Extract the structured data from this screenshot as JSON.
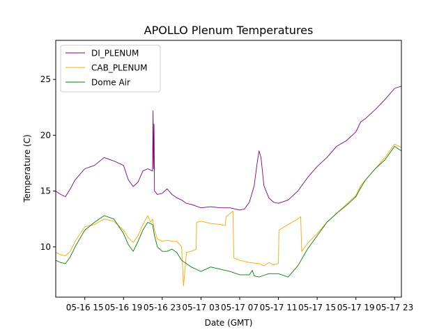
{
  "chart_data": {
    "type": "line",
    "title": "APOLLO Plenum Temperatures",
    "xlabel": "Date (GMT)",
    "ylabel": "Temperature (C)",
    "x_unit": "hours since 05-16 12:00 GMT",
    "xlim": [
      0,
      35.7
    ],
    "ylim": [
      5.5,
      28.5
    ],
    "x_ticks": [
      {
        "value": 3,
        "label": "05-16 15"
      },
      {
        "value": 7,
        "label": "05-16 19"
      },
      {
        "value": 11,
        "label": "05-16 23"
      },
      {
        "value": 15,
        "label": "05-17 03"
      },
      {
        "value": 19,
        "label": "05-17 07"
      },
      {
        "value": 23,
        "label": "05-17 11"
      },
      {
        "value": 27,
        "label": "05-17 15"
      },
      {
        "value": 31,
        "label": "05-17 19"
      },
      {
        "value": 35,
        "label": "05-17 23"
      }
    ],
    "y_ticks": [
      {
        "value": 10,
        "label": "10"
      },
      {
        "value": 15,
        "label": "15"
      },
      {
        "value": 20,
        "label": "20"
      },
      {
        "value": 25,
        "label": "25"
      }
    ],
    "legend_position": "top-left",
    "series": [
      {
        "name": "DI_PLENUM",
        "color": "#800080",
        "points": [
          [
            0,
            15
          ],
          [
            0.5,
            14.7
          ],
          [
            1,
            14.5
          ],
          [
            1.5,
            15.2
          ],
          [
            2,
            16
          ],
          [
            3,
            17
          ],
          [
            4,
            17.3
          ],
          [
            5,
            18
          ],
          [
            6,
            17.7
          ],
          [
            7,
            17.3
          ],
          [
            7.5,
            16
          ],
          [
            8,
            15.4
          ],
          [
            8.5,
            15.8
          ],
          [
            9,
            16.8
          ],
          [
            9.5,
            17
          ],
          [
            10,
            16.8
          ],
          [
            10.05,
            22.2
          ],
          [
            10.1,
            17
          ],
          [
            10.15,
            21
          ],
          [
            10.2,
            15
          ],
          [
            10.5,
            14.7
          ],
          [
            11,
            14.8
          ],
          [
            11.5,
            15.2
          ],
          [
            12,
            14.7
          ],
          [
            12.5,
            14.4
          ],
          [
            13,
            14.2
          ],
          [
            13.5,
            13.9
          ],
          [
            14,
            13.8
          ],
          [
            15,
            13.5
          ],
          [
            16,
            13.6
          ],
          [
            17,
            13.5
          ],
          [
            18,
            13.5
          ],
          [
            19,
            13.3
          ],
          [
            19.5,
            13.4
          ],
          [
            20,
            14
          ],
          [
            20.5,
            15.5
          ],
          [
            20.8,
            17.5
          ],
          [
            21,
            18.6
          ],
          [
            21.2,
            18
          ],
          [
            21.5,
            15.5
          ],
          [
            22,
            14.4
          ],
          [
            22.5,
            14
          ],
          [
            23,
            13.9
          ],
          [
            24,
            14.2
          ],
          [
            25,
            15
          ],
          [
            26,
            16.2
          ],
          [
            27,
            17.2
          ],
          [
            28,
            18
          ],
          [
            29,
            19
          ],
          [
            30,
            19.5
          ],
          [
            31,
            20.3
          ],
          [
            31.5,
            21.2
          ],
          [
            32,
            21.5
          ],
          [
            33,
            22.3
          ],
          [
            34,
            23.2
          ],
          [
            35,
            24.2
          ],
          [
            35.7,
            24.4
          ]
        ]
      },
      {
        "name": "CAB_PLENUM",
        "color": "#FFA500",
        "points": [
          [
            0,
            9.5
          ],
          [
            0.5,
            9.3
          ],
          [
            1,
            9.2
          ],
          [
            1.5,
            9.6
          ],
          [
            2,
            10.5
          ],
          [
            3,
            11.8
          ],
          [
            4,
            12
          ],
          [
            5,
            12.5
          ],
          [
            6,
            12.3
          ],
          [
            7,
            11.5
          ],
          [
            7.5,
            10.8
          ],
          [
            8,
            10.4
          ],
          [
            8.5,
            11
          ],
          [
            9,
            12
          ],
          [
            9.5,
            12.8
          ],
          [
            9.8,
            12.2
          ],
          [
            10,
            12.5
          ],
          [
            10.2,
            11.5
          ],
          [
            10.5,
            10.7
          ],
          [
            11,
            10.5
          ],
          [
            11.5,
            10.6
          ],
          [
            12,
            10.5
          ],
          [
            12.5,
            10.5
          ],
          [
            13,
            10
          ],
          [
            13.2,
            6.5
          ],
          [
            13.5,
            9.5
          ],
          [
            14,
            9.6
          ],
          [
            14.5,
            9.8
          ],
          [
            14.55,
            12.2
          ],
          [
            15,
            12.3
          ],
          [
            16,
            12.1
          ],
          [
            17,
            12
          ],
          [
            17.5,
            11.9
          ],
          [
            17.6,
            12.7
          ],
          [
            18,
            13
          ],
          [
            18.3,
            13.2
          ],
          [
            18.4,
            9
          ],
          [
            19,
            8.8
          ],
          [
            20,
            8.6
          ],
          [
            21,
            8.5
          ],
          [
            21.5,
            8.3
          ],
          [
            22,
            8.6
          ],
          [
            22.5,
            8.4
          ],
          [
            23,
            8.5
          ],
          [
            23.05,
            11.5
          ],
          [
            24,
            12
          ],
          [
            25,
            12.5
          ],
          [
            25.3,
            12.7
          ],
          [
            25.4,
            9.6
          ],
          [
            26,
            10.3
          ],
          [
            27,
            11.2
          ],
          [
            28,
            12.2
          ],
          [
            29,
            13
          ],
          [
            30,
            13.8
          ],
          [
            31,
            14.6
          ],
          [
            31.5,
            15.5
          ],
          [
            32,
            16
          ],
          [
            33,
            17
          ],
          [
            34,
            18
          ],
          [
            35,
            19.2
          ],
          [
            35.7,
            18.9
          ]
        ]
      },
      {
        "name": "Dome Air",
        "color": "#008000",
        "points": [
          [
            0,
            8.8
          ],
          [
            0.5,
            8.6
          ],
          [
            1,
            8.5
          ],
          [
            1.5,
            9.1
          ],
          [
            2,
            10
          ],
          [
            3,
            11.5
          ],
          [
            4,
            12.2
          ],
          [
            5,
            12.8
          ],
          [
            6,
            12.5
          ],
          [
            7,
            11.2
          ],
          [
            7.5,
            10.2
          ],
          [
            8,
            9.6
          ],
          [
            8.5,
            10.5
          ],
          [
            9,
            11.5
          ],
          [
            9.5,
            12.2
          ],
          [
            10,
            12
          ],
          [
            10.2,
            11
          ],
          [
            10.5,
            10
          ],
          [
            11,
            9.6
          ],
          [
            11.5,
            9.6
          ],
          [
            12,
            9.8
          ],
          [
            12.5,
            9.5
          ],
          [
            13,
            8.8
          ],
          [
            13.5,
            8.5
          ],
          [
            14,
            8.2
          ],
          [
            15,
            7.8
          ],
          [
            16,
            8.2
          ],
          [
            17,
            8
          ],
          [
            18,
            7.8
          ],
          [
            19,
            7.5
          ],
          [
            20,
            7.5
          ],
          [
            20.3,
            7.9
          ],
          [
            20.5,
            7.4
          ],
          [
            21,
            7.3
          ],
          [
            22,
            7.6
          ],
          [
            23,
            7.6
          ],
          [
            24,
            7.3
          ],
          [
            25,
            8.3
          ],
          [
            26,
            9.8
          ],
          [
            27,
            11
          ],
          [
            28,
            12.2
          ],
          [
            29,
            13
          ],
          [
            30,
            13.7
          ],
          [
            31,
            14.5
          ],
          [
            31.5,
            15.3
          ],
          [
            32,
            16
          ],
          [
            33,
            17
          ],
          [
            34,
            17.8
          ],
          [
            35,
            19
          ],
          [
            35.7,
            18.6
          ]
        ]
      }
    ]
  }
}
